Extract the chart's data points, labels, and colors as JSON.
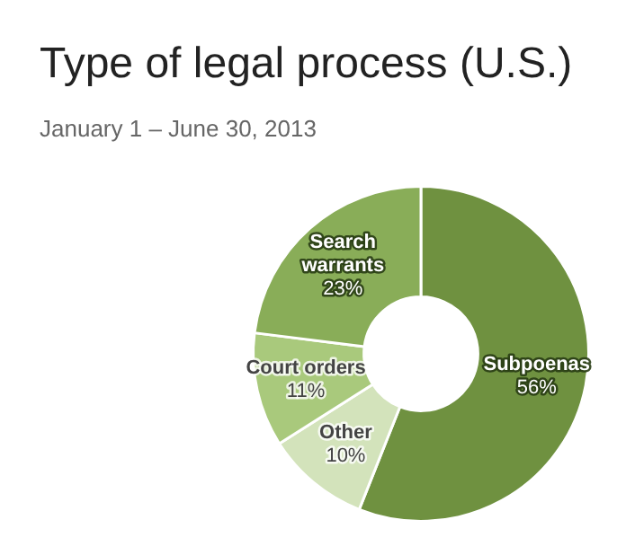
{
  "chart_data": {
    "type": "donut",
    "title": "Type of legal process (U.S.)",
    "subtitle": "January 1 – June 30, 2013",
    "categories": [
      "Subpoenas",
      "Other",
      "Court orders",
      "Search warrants"
    ],
    "values": [
      56,
      10,
      11,
      23
    ],
    "colors": [
      "#6f9140",
      "#d3e3bb",
      "#a9c97c",
      "#89ad58"
    ],
    "value_labels": [
      "56%",
      "10%",
      "11%",
      "23%"
    ],
    "legend": false
  }
}
